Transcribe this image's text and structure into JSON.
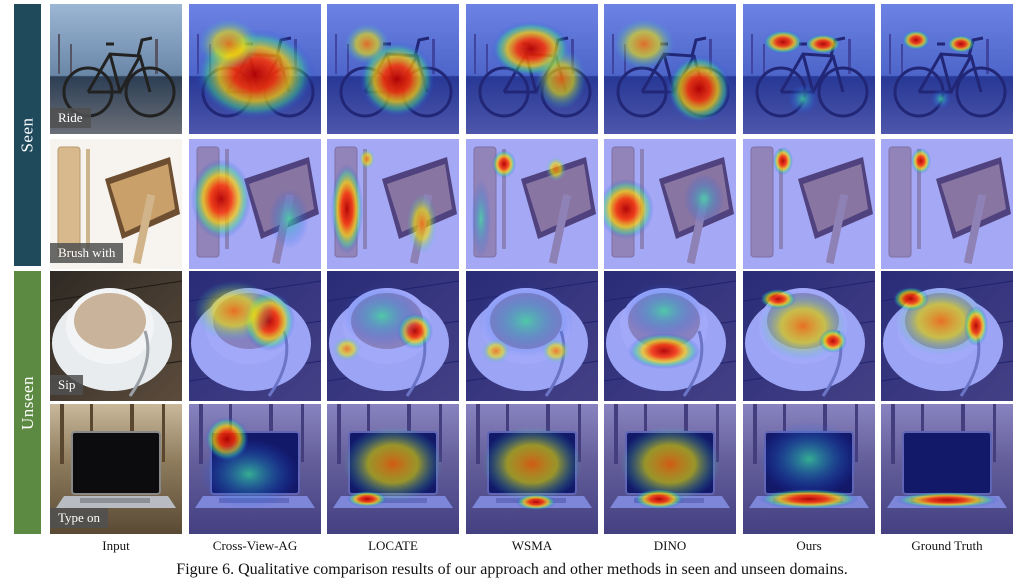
{
  "groups": {
    "seen": "Seen",
    "unseen": "Unseen"
  },
  "colors": {
    "seen_bar": "#1e4a5c",
    "unseen_bar": "#5d8a43"
  },
  "columns": [
    "Input",
    "Cross-View-AG",
    "LOCATE",
    "WSMA",
    "DINO",
    "Ours",
    "Ground Truth"
  ],
  "rows": [
    {
      "action": "Ride",
      "subject": "bicycle"
    },
    {
      "action": "Brush with",
      "subject": "toothbrush"
    },
    {
      "action": "Sip",
      "subject": "cup"
    },
    {
      "action": "Type on",
      "subject": "laptop"
    }
  ],
  "caption": "Figure 6. Qualitative comparison results of our approach and other methods in seen and unseen domains."
}
